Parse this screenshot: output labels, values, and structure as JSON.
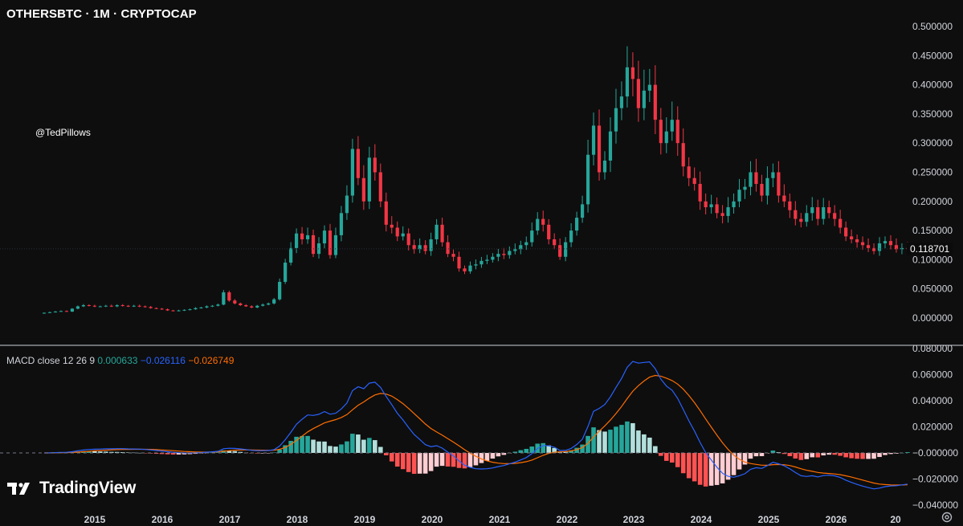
{
  "header": {
    "title": "OTHERSBTC · 1M · CRYPTOCAP",
    "watermark": "@TedPillows"
  },
  "macd_legend": {
    "label": "MACD close 12 26 9",
    "histogram": "0.000633",
    "macd": "−0.026116",
    "signal": "−0.026749"
  },
  "branding": {
    "logo_text": "TradingView"
  },
  "colors": {
    "background": "#0e0e0e",
    "up": "#26a69a",
    "down": "#f23645",
    "macd_line": "#2962ff",
    "signal_line": "#ff6d00",
    "hist_up_strong": "#26a69a",
    "hist_up_weak": "#b2dfdb",
    "hist_down_strong": "#ff5252",
    "hist_down_weak": "#ffcdd2"
  },
  "chart_data": [
    {
      "type": "candlestick",
      "title": "OTHERSBTC · 1M · CRYPTOCAP",
      "y_ticks": [
        "0.500000",
        "0.450000",
        "0.400000",
        "0.350000",
        "0.300000",
        "0.250000",
        "0.200000",
        "0.150000",
        "0.100000",
        "0.050000",
        "0.000000"
      ],
      "ylim": [
        0,
        0.5
      ],
      "x_ticks": [
        "2015",
        "2016",
        "2017",
        "2018",
        "2019",
        "2020",
        "2021",
        "2022",
        "2023",
        "2024",
        "2025",
        "2026",
        "20"
      ],
      "current_price": "0.118701",
      "close_series": {
        "start": "2014-08",
        "values": [
          0.009,
          0.01,
          0.011,
          0.012,
          0.011,
          0.016,
          0.02,
          0.022,
          0.021,
          0.02,
          0.02,
          0.021,
          0.02,
          0.022,
          0.021,
          0.02,
          0.021,
          0.02,
          0.019,
          0.017,
          0.016,
          0.015,
          0.013,
          0.012,
          0.013,
          0.014,
          0.015,
          0.017,
          0.018,
          0.02,
          0.021,
          0.023,
          0.044,
          0.03,
          0.025,
          0.022,
          0.02,
          0.018,
          0.021,
          0.023,
          0.025,
          0.032,
          0.062,
          0.095,
          0.12,
          0.145,
          0.135,
          0.142,
          0.11,
          0.128,
          0.15,
          0.108,
          0.142,
          0.18,
          0.21,
          0.29,
          0.24,
          0.2,
          0.275,
          0.25,
          0.2,
          0.16,
          0.155,
          0.14,
          0.145,
          0.125,
          0.118,
          0.125,
          0.115,
          0.135,
          0.16,
          0.13,
          0.11,
          0.105,
          0.085,
          0.08,
          0.09,
          0.092,
          0.098,
          0.1,
          0.105,
          0.11,
          0.108,
          0.115,
          0.118,
          0.125,
          0.13,
          0.15,
          0.17,
          0.16,
          0.135,
          0.125,
          0.105,
          0.13,
          0.15,
          0.172,
          0.195,
          0.28,
          0.33,
          0.25,
          0.27,
          0.32,
          0.36,
          0.38,
          0.43,
          0.41,
          0.36,
          0.39,
          0.4,
          0.34,
          0.3,
          0.32,
          0.34,
          0.3,
          0.26,
          0.24,
          0.23,
          0.2,
          0.19,
          0.195,
          0.18,
          0.175,
          0.19,
          0.2,
          0.22,
          0.225,
          0.25,
          0.23,
          0.21,
          0.24,
          0.25,
          0.21,
          0.2,
          0.185,
          0.17,
          0.165,
          0.18,
          0.19,
          0.17,
          0.19,
          0.18,
          0.17,
          0.155,
          0.14,
          0.135,
          0.13,
          0.125,
          0.12,
          0.115,
          0.128,
          0.132,
          0.125,
          0.118,
          0.12,
          0.119
        ]
      }
    },
    {
      "type": "macd",
      "title": "MACD close 12 26 9",
      "y_ticks": [
        "0.080000",
        "0.060000",
        "0.040000",
        "0.020000",
        "−0.000000",
        "−0.020000",
        "−0.040000"
      ],
      "ylim": [
        -0.04,
        0.08
      ],
      "last_values": {
        "histogram": 0.000633,
        "macd": -0.026116,
        "signal": -0.026749
      }
    }
  ]
}
